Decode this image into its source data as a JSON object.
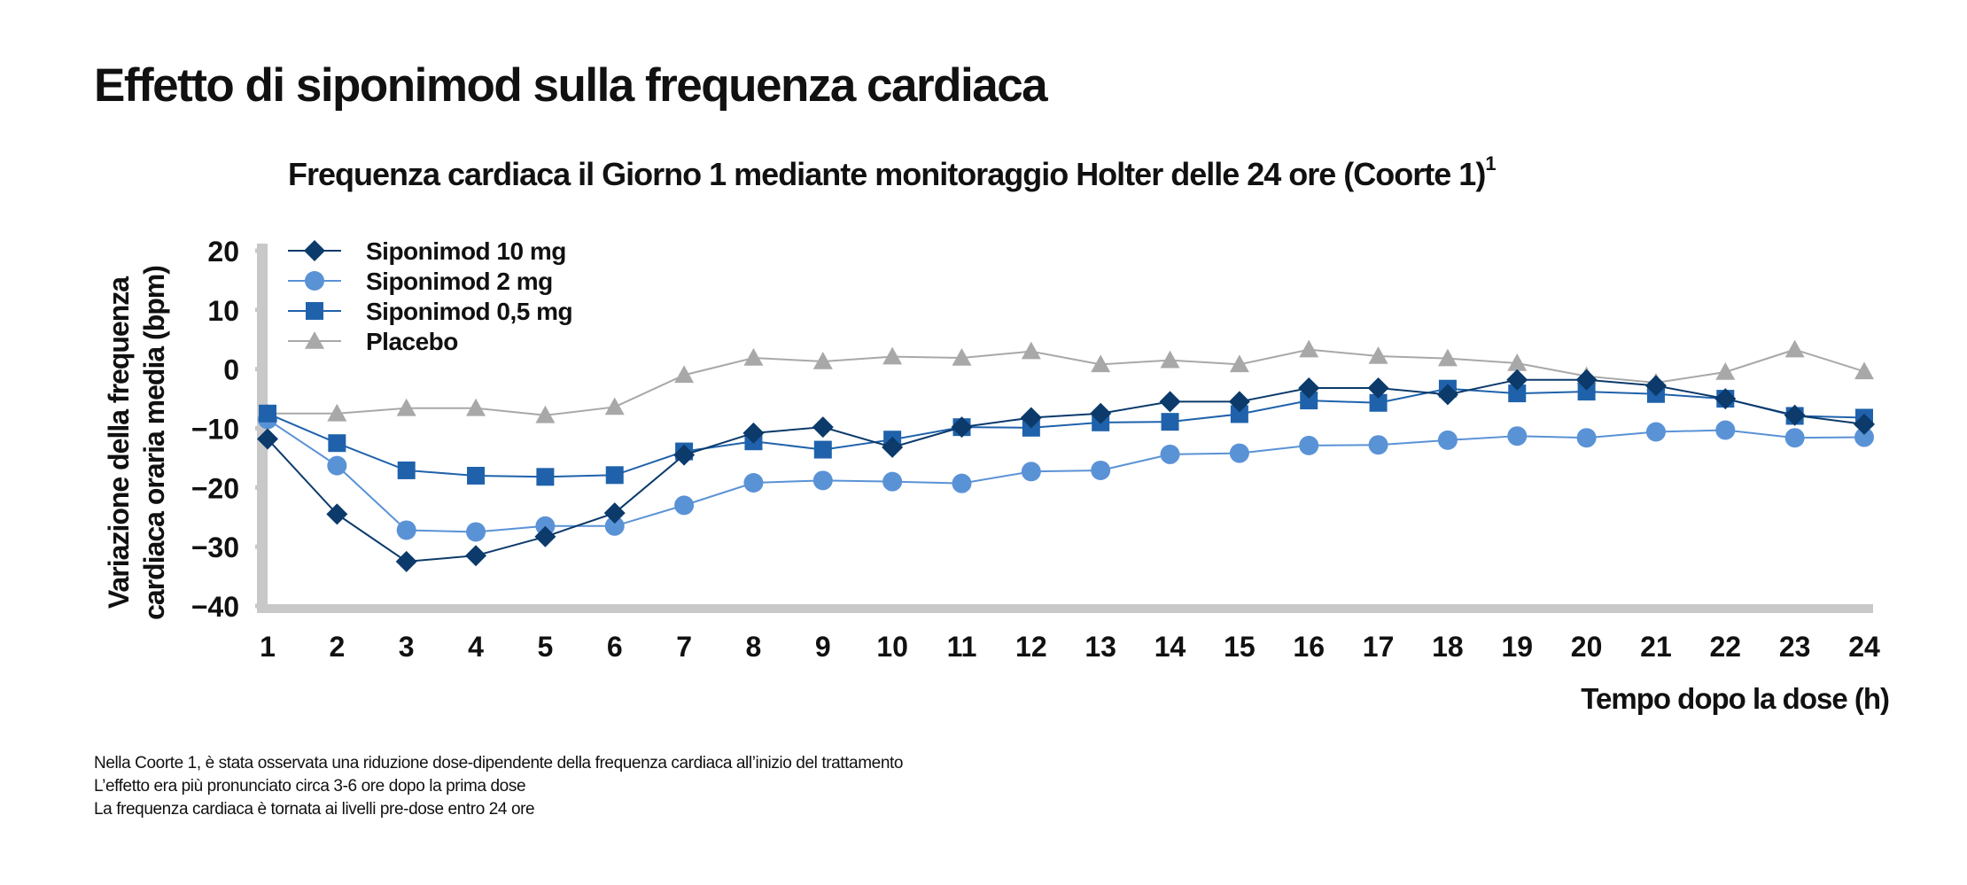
{
  "page_title": "Effetto di siponimod sulla frequenza cardiaca",
  "chart_data": {
    "type": "line",
    "title": "Frequenza cardiaca il Giorno 1 mediante monitoraggio Holter delle 24 ore (Coorte 1)",
    "title_superscript": "1",
    "xlabel": "Tempo dopo la dose (h)",
    "ylabel_line1": "Variazione della frequenza",
    "ylabel_line2": "cardiaca oraria media (bpm)",
    "x": [
      1,
      2,
      3,
      4,
      5,
      6,
      7,
      8,
      9,
      10,
      11,
      12,
      13,
      14,
      15,
      16,
      17,
      18,
      19,
      20,
      21,
      22,
      23,
      24
    ],
    "xlim": [
      1,
      24
    ],
    "ylim": [
      -40,
      20
    ],
    "y_ticks": [
      20,
      10,
      0,
      -10,
      -20,
      -30,
      -40
    ],
    "y_tick_labels": [
      "20",
      "10",
      "0",
      "−10",
      "−20",
      "−30",
      "−40"
    ],
    "grid": false,
    "legend_position": "top-left",
    "series": [
      {
        "name": "Siponimod 10 mg",
        "marker": "diamond",
        "color": "#0b3a6b",
        "values": [
          -11.8,
          -24.5,
          -32.5,
          -31.5,
          -28.3,
          -24.3,
          -14.5,
          -10.8,
          -9.8,
          -13.2,
          -9.8,
          -8.2,
          -7.5,
          -5.5,
          -5.5,
          -3.2,
          -3.2,
          -4.3,
          -1.8,
          -1.8,
          -2.8,
          -5,
          -7.8,
          -9.3
        ]
      },
      {
        "name": "Siponimod 2 mg",
        "marker": "circle",
        "color": "#5a92d6",
        "values": [
          -8.5,
          -16.3,
          -27.2,
          -27.5,
          -26.5,
          -26.5,
          -23,
          -19.2,
          -18.8,
          -19,
          -19.3,
          -17.3,
          -17.1,
          -14.4,
          -14.2,
          -12.9,
          -12.8,
          -12,
          -11.3,
          -11.6,
          -10.6,
          -10.3,
          -11.6,
          -11.5
        ]
      },
      {
        "name": "Siponimod 0,5 mg",
        "marker": "square",
        "color": "#1f62ab",
        "values": [
          -7.5,
          -12.5,
          -17.1,
          -18,
          -18.2,
          -17.9,
          -13.9,
          -12.2,
          -13.6,
          -11.9,
          -9.8,
          -9.9,
          -9,
          -8.9,
          -7.6,
          -5.3,
          -5.7,
          -3.3,
          -4.1,
          -3.8,
          -4.2,
          -5,
          -7.9,
          -8.2
        ]
      },
      {
        "name": "Placebo",
        "marker": "triangle",
        "color": "#a8a8a8",
        "values": [
          -7.5,
          -7.5,
          -6.6,
          -6.6,
          -7.8,
          -6.4,
          -1,
          1.9,
          1.3,
          2.1,
          1.9,
          3,
          0.8,
          1.5,
          0.8,
          3.3,
          2.2,
          1.8,
          1,
          -1.2,
          -2.3,
          -0.5,
          3.3,
          -0.4
        ]
      }
    ]
  },
  "notes": [
    "Nella Coorte 1, è stata osservata una riduzione dose-dipendente della frequenza cardiaca all’inizio del trattamento",
    "L’effetto era più pronunciato circa 3-6 ore dopo la prima dose",
    "La frequenza cardiaca è tornata ai livelli pre-dose entro 24 ore"
  ],
  "colors": {
    "axis": "#c8c8c8",
    "text": "#111111"
  }
}
